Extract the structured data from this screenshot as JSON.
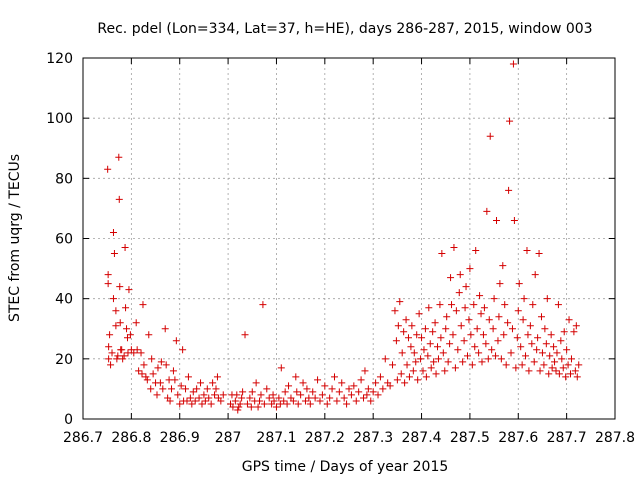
{
  "chart_data": {
    "type": "scatter",
    "title": "Rec. pdel (Lon=334, Lat=37, h=HE), days 286-287, 2015, window 003",
    "xlabel": "GPS time / Days of year 2015",
    "ylabel": "STEC from uqrg / TECUs",
    "xlim": [
      286.7,
      287.8
    ],
    "ylim": [
      0,
      120
    ],
    "x_ticks": [
      286.7,
      286.8,
      286.9,
      287.0,
      287.1,
      287.2,
      287.3,
      287.4,
      287.5,
      287.6,
      287.7,
      287.8
    ],
    "x_tick_labels": [
      "286.7",
      "286.8",
      "286.9",
      "287",
      "287.1",
      "287.2",
      "287.3",
      "287.4",
      "287.5",
      "287.6",
      "287.7",
      "287.8"
    ],
    "y_ticks": [
      0,
      20,
      40,
      60,
      80,
      100,
      120
    ],
    "y_tick_labels": [
      "0",
      "20",
      "40",
      "60",
      "80",
      "100",
      "120"
    ],
    "grid": true,
    "marker": "+",
    "color": "#d40000",
    "points": [
      [
        286.751,
        83
      ],
      [
        286.752,
        48
      ],
      [
        286.752,
        45
      ],
      [
        286.753,
        24
      ],
      [
        286.753,
        20
      ],
      [
        286.755,
        28
      ],
      [
        286.757,
        18
      ],
      [
        286.76,
        22
      ],
      [
        286.763,
        40
      ],
      [
        286.763,
        62
      ],
      [
        286.765,
        55
      ],
      [
        286.768,
        36
      ],
      [
        286.768,
        31
      ],
      [
        286.77,
        20
      ],
      [
        286.772,
        21
      ],
      [
        286.774,
        87
      ],
      [
        286.775,
        73
      ],
      [
        286.776,
        44
      ],
      [
        286.777,
        32
      ],
      [
        286.778,
        23
      ],
      [
        286.78,
        23
      ],
      [
        286.782,
        20
      ],
      [
        286.785,
        21
      ],
      [
        286.787,
        57
      ],
      [
        286.788,
        37
      ],
      [
        286.79,
        30
      ],
      [
        286.792,
        27
      ],
      [
        286.793,
        22
      ],
      [
        286.795,
        43
      ],
      [
        286.798,
        28
      ],
      [
        286.8,
        23
      ],
      [
        286.805,
        22
      ],
      [
        286.81,
        32
      ],
      [
        286.812,
        23
      ],
      [
        286.815,
        16
      ],
      [
        286.82,
        22
      ],
      [
        286.822,
        15
      ],
      [
        286.824,
        38
      ],
      [
        286.826,
        18
      ],
      [
        286.83,
        14
      ],
      [
        286.833,
        13
      ],
      [
        286.836,
        28
      ],
      [
        286.84,
        10
      ],
      [
        286.842,
        20
      ],
      [
        286.845,
        15
      ],
      [
        286.85,
        12
      ],
      [
        286.853,
        8
      ],
      [
        286.855,
        17
      ],
      [
        286.86,
        12
      ],
      [
        286.862,
        19
      ],
      [
        286.865,
        10
      ],
      [
        286.87,
        30
      ],
      [
        286.872,
        18
      ],
      [
        286.875,
        7
      ],
      [
        286.878,
        13
      ],
      [
        286.88,
        6
      ],
      [
        286.883,
        10
      ],
      [
        286.887,
        16
      ],
      [
        286.89,
        13
      ],
      [
        286.893,
        26
      ],
      [
        286.896,
        8
      ],
      [
        286.9,
        5
      ],
      [
        286.903,
        11
      ],
      [
        286.906,
        23
      ],
      [
        286.908,
        6
      ],
      [
        286.912,
        10
      ],
      [
        286.915,
        6
      ],
      [
        286.918,
        14
      ],
      [
        286.922,
        7
      ],
      [
        286.925,
        5
      ],
      [
        286.928,
        9
      ],
      [
        286.932,
        6
      ],
      [
        286.935,
        10
      ],
      [
        286.94,
        7
      ],
      [
        286.943,
        12
      ],
      [
        286.946,
        5
      ],
      [
        286.95,
        8
      ],
      [
        286.953,
        6
      ],
      [
        286.957,
        10
      ],
      [
        286.96,
        7
      ],
      [
        286.965,
        5
      ],
      [
        286.968,
        12
      ],
      [
        286.972,
        8
      ],
      [
        286.975,
        10
      ],
      [
        286.978,
        14
      ],
      [
        286.98,
        7
      ],
      [
        286.985,
        6
      ],
      [
        286.99,
        8
      ],
      [
        287.005,
        5
      ],
      [
        287.008,
        8
      ],
      [
        287.01,
        4
      ],
      [
        287.015,
        6
      ],
      [
        287.018,
        8
      ],
      [
        287.02,
        3
      ],
      [
        287.022,
        4
      ],
      [
        287.025,
        5
      ],
      [
        287.028,
        7
      ],
      [
        287.03,
        9
      ],
      [
        287.035,
        28
      ],
      [
        287.04,
        5
      ],
      [
        287.045,
        7
      ],
      [
        287.048,
        4
      ],
      [
        287.05,
        9
      ],
      [
        287.055,
        6
      ],
      [
        287.058,
        12
      ],
      [
        287.062,
        4
      ],
      [
        287.065,
        6
      ],
      [
        287.068,
        8
      ],
      [
        287.072,
        38
      ],
      [
        287.075,
        5
      ],
      [
        287.08,
        10
      ],
      [
        287.085,
        7
      ],
      [
        287.09,
        5
      ],
      [
        287.093,
        8
      ],
      [
        287.095,
        6
      ],
      [
        287.1,
        4
      ],
      [
        287.105,
        7
      ],
      [
        287.108,
        5
      ],
      [
        287.11,
        17
      ],
      [
        287.115,
        6
      ],
      [
        287.118,
        9
      ],
      [
        287.122,
        5
      ],
      [
        287.125,
        11
      ],
      [
        287.13,
        7
      ],
      [
        287.135,
        6
      ],
      [
        287.14,
        14
      ],
      [
        287.142,
        9
      ],
      [
        287.145,
        5
      ],
      [
        287.15,
        8
      ],
      [
        287.155,
        12
      ],
      [
        287.16,
        6
      ],
      [
        287.163,
        10
      ],
      [
        287.167,
        7
      ],
      [
        287.17,
        5
      ],
      [
        287.175,
        9
      ],
      [
        287.18,
        7
      ],
      [
        287.185,
        13
      ],
      [
        287.19,
        6
      ],
      [
        287.195,
        8
      ],
      [
        287.2,
        11
      ],
      [
        287.205,
        5
      ],
      [
        287.21,
        7
      ],
      [
        287.215,
        10
      ],
      [
        287.22,
        14
      ],
      [
        287.225,
        6
      ],
      [
        287.23,
        9
      ],
      [
        287.235,
        12
      ],
      [
        287.24,
        7
      ],
      [
        287.245,
        5
      ],
      [
        287.25,
        10
      ],
      [
        287.255,
        8
      ],
      [
        287.26,
        11
      ],
      [
        287.265,
        6
      ],
      [
        287.27,
        9
      ],
      [
        287.275,
        13
      ],
      [
        287.28,
        7
      ],
      [
        287.283,
        16
      ],
      [
        287.287,
        8
      ],
      [
        287.29,
        10
      ],
      [
        287.295,
        6
      ],
      [
        287.3,
        9
      ],
      [
        287.305,
        12
      ],
      [
        287.31,
        8
      ],
      [
        287.315,
        14
      ],
      [
        287.32,
        10
      ],
      [
        287.325,
        20
      ],
      [
        287.33,
        12
      ],
      [
        287.335,
        11
      ],
      [
        287.34,
        18
      ],
      [
        287.345,
        36
      ],
      [
        287.348,
        26
      ],
      [
        287.35,
        13
      ],
      [
        287.352,
        31
      ],
      [
        287.355,
        39
      ],
      [
        287.358,
        15
      ],
      [
        287.36,
        22
      ],
      [
        287.363,
        29
      ],
      [
        287.365,
        12
      ],
      [
        287.368,
        33
      ],
      [
        287.37,
        18
      ],
      [
        287.373,
        27
      ],
      [
        287.375,
        14
      ],
      [
        287.378,
        24
      ],
      [
        287.38,
        31
      ],
      [
        287.383,
        16
      ],
      [
        287.385,
        22
      ],
      [
        287.388,
        19
      ],
      [
        287.39,
        28
      ],
      [
        287.392,
        13
      ],
      [
        287.395,
        35
      ],
      [
        287.398,
        20
      ],
      [
        287.4,
        27
      ],
      [
        287.403,
        16
      ],
      [
        287.405,
        23
      ],
      [
        287.408,
        30
      ],
      [
        287.41,
        14
      ],
      [
        287.413,
        21
      ],
      [
        287.415,
        37
      ],
      [
        287.418,
        25
      ],
      [
        287.42,
        17
      ],
      [
        287.423,
        29
      ],
      [
        287.425,
        19
      ],
      [
        287.428,
        32
      ],
      [
        287.43,
        15
      ],
      [
        287.433,
        24
      ],
      [
        287.435,
        20
      ],
      [
        287.438,
        38
      ],
      [
        287.44,
        27
      ],
      [
        287.442,
        55
      ],
      [
        287.445,
        22
      ],
      [
        287.448,
        16
      ],
      [
        287.45,
        30
      ],
      [
        287.452,
        34
      ],
      [
        287.455,
        19
      ],
      [
        287.458,
        25
      ],
      [
        287.46,
        47
      ],
      [
        287.462,
        38
      ],
      [
        287.465,
        28
      ],
      [
        287.467,
        57
      ],
      [
        287.47,
        17
      ],
      [
        287.472,
        36
      ],
      [
        287.475,
        23
      ],
      [
        287.478,
        42
      ],
      [
        287.48,
        48
      ],
      [
        287.482,
        31
      ],
      [
        287.485,
        19
      ],
      [
        287.488,
        26
      ],
      [
        287.49,
        37
      ],
      [
        287.492,
        44
      ],
      [
        287.495,
        21
      ],
      [
        287.498,
        33
      ],
      [
        287.5,
        50
      ],
      [
        287.502,
        28
      ],
      [
        287.505,
        18
      ],
      [
        287.508,
        38
      ],
      [
        287.51,
        24
      ],
      [
        287.512,
        56
      ],
      [
        287.515,
        30
      ],
      [
        287.518,
        22
      ],
      [
        287.52,
        41
      ],
      [
        287.523,
        35
      ],
      [
        287.525,
        19
      ],
      [
        287.528,
        28
      ],
      [
        287.53,
        37
      ],
      [
        287.533,
        25
      ],
      [
        287.535,
        69
      ],
      [
        287.538,
        20
      ],
      [
        287.54,
        33
      ],
      [
        287.542,
        94
      ],
      [
        287.545,
        23
      ],
      [
        287.548,
        30
      ],
      [
        287.55,
        40
      ],
      [
        287.553,
        21
      ],
      [
        287.555,
        66
      ],
      [
        287.558,
        26
      ],
      [
        287.56,
        34
      ],
      [
        287.562,
        45
      ],
      [
        287.565,
        20
      ],
      [
        287.568,
        51
      ],
      [
        287.57,
        28
      ],
      [
        287.572,
        38
      ],
      [
        287.575,
        18
      ],
      [
        287.578,
        32
      ],
      [
        287.58,
        76
      ],
      [
        287.582,
        99
      ],
      [
        287.585,
        22
      ],
      [
        287.588,
        30
      ],
      [
        287.59,
        118
      ],
      [
        287.592,
        66
      ],
      [
        287.595,
        17
      ],
      [
        287.598,
        27
      ],
      [
        287.6,
        36
      ],
      [
        287.602,
        45
      ],
      [
        287.605,
        24
      ],
      [
        287.608,
        18
      ],
      [
        287.61,
        33
      ],
      [
        287.612,
        40
      ],
      [
        287.615,
        21
      ],
      [
        287.618,
        56
      ],
      [
        287.62,
        28
      ],
      [
        287.622,
        16
      ],
      [
        287.625,
        31
      ],
      [
        287.628,
        25
      ],
      [
        287.63,
        38
      ],
      [
        287.633,
        19
      ],
      [
        287.635,
        48
      ],
      [
        287.638,
        23
      ],
      [
        287.64,
        27
      ],
      [
        287.643,
        55
      ],
      [
        287.645,
        16
      ],
      [
        287.648,
        34
      ],
      [
        287.65,
        22
      ],
      [
        287.653,
        18
      ],
      [
        287.655,
        30
      ],
      [
        287.658,
        25
      ],
      [
        287.66,
        40
      ],
      [
        287.663,
        15
      ],
      [
        287.665,
        21
      ],
      [
        287.668,
        28
      ],
      [
        287.67,
        17
      ],
      [
        287.673,
        24
      ],
      [
        287.675,
        19
      ],
      [
        287.678,
        16
      ],
      [
        287.68,
        22
      ],
      [
        287.683,
        38
      ],
      [
        287.685,
        15
      ],
      [
        287.688,
        26
      ],
      [
        287.69,
        20
      ],
      [
        287.693,
        17
      ],
      [
        287.695,
        29
      ],
      [
        287.698,
        14
      ],
      [
        287.7,
        23
      ],
      [
        287.703,
        18
      ],
      [
        287.705,
        33
      ],
      [
        287.708,
        15
      ],
      [
        287.71,
        20
      ],
      [
        287.715,
        29
      ],
      [
        287.718,
        16
      ],
      [
        287.72,
        31
      ],
      [
        287.722,
        14
      ],
      [
        287.725,
        18
      ]
    ]
  }
}
